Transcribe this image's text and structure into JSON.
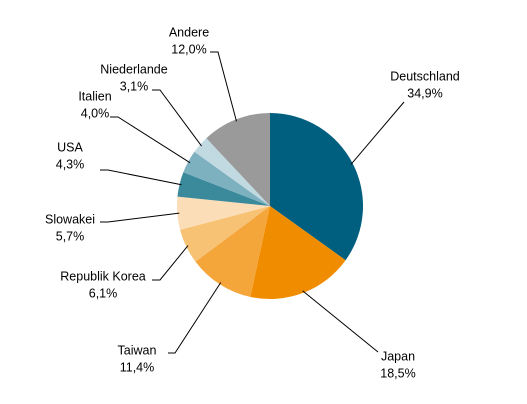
{
  "chart_data": {
    "type": "pie",
    "categories": [
      "Deutschland",
      "Japan",
      "Taiwan",
      "Republik Korea",
      "Slowakei",
      "USA",
      "Italien",
      "Niederlande",
      "Andere"
    ],
    "values": [
      34.9,
      18.5,
      11.4,
      6.1,
      5.7,
      4.3,
      4.0,
      3.1,
      12.0
    ],
    "value_labels": [
      "34,9%",
      "18,5%",
      "11,4%",
      "6,1%",
      "5,7%",
      "4,3%",
      "4,0%",
      "3,1%",
      "12,0%"
    ],
    "colors": [
      "#005f7f",
      "#f08c00",
      "#f5a63a",
      "#f8c275",
      "#fbdeb8",
      "#3b8a9c",
      "#7db1bf",
      "#c1d9e1",
      "#9a9a9a"
    ]
  }
}
